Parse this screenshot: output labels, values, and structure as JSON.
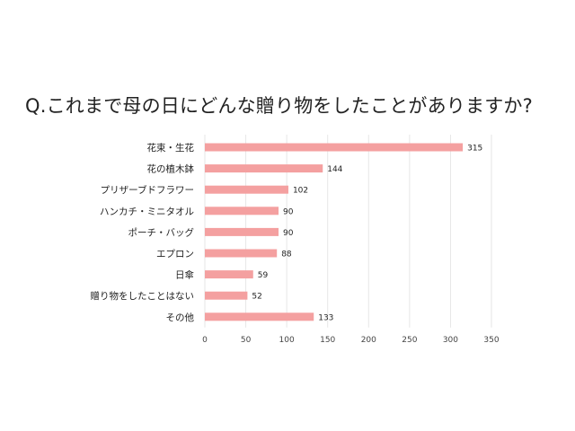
{
  "chart_data": {
    "type": "bar",
    "orientation": "horizontal",
    "title": "Q.これまで母の日にどんな贈り物をしたことがありますか?",
    "categories": [
      "花束・生花",
      "花の植木鉢",
      "プリザーブドフラワー",
      "ハンカチ・ミニタオル",
      "ポーチ・バッグ",
      "エプロン",
      "日傘",
      "贈り物をしたことはない",
      "その他"
    ],
    "values": [
      315,
      144,
      102,
      90,
      90,
      88,
      59,
      52,
      133
    ],
    "xlim": [
      0,
      350
    ],
    "xticks": [
      0,
      50,
      100,
      150,
      200,
      250,
      300,
      350
    ],
    "xlabel": "",
    "ylabel": "",
    "grid": true,
    "data_labels": true,
    "bar_color": "#f4a0a0",
    "grid_color": "#e6e6e6"
  }
}
